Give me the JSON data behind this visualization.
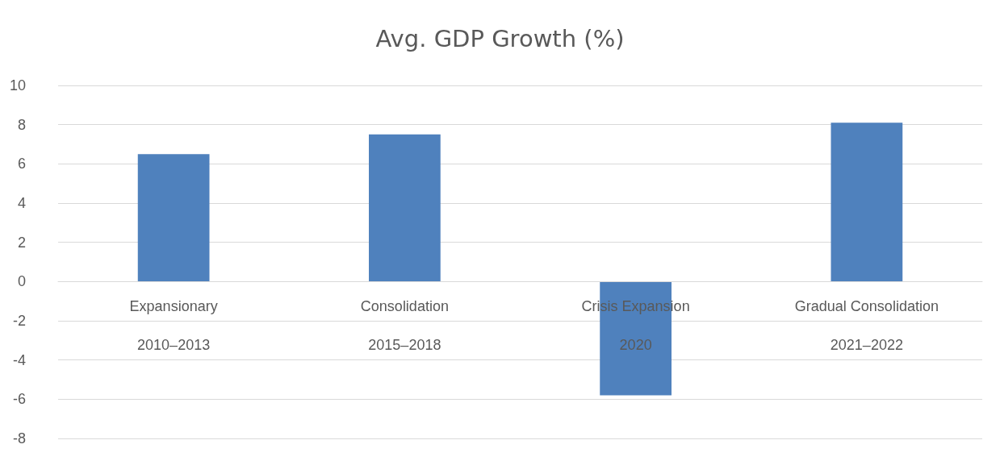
{
  "chart_data": {
    "type": "bar",
    "title": "Avg. GDP Growth (%)",
    "categories": [
      "Expansionary\n2010–2013",
      "Consolidation\n2015–2018",
      "Crisis Expansion\n2020",
      "Gradual Consolidation\n2021–2022"
    ],
    "values": [
      6.5,
      7.5,
      -5.8,
      8.1
    ],
    "color": "#4f81bd",
    "ylim": [
      -8,
      10
    ],
    "yticks": [
      -8,
      -6,
      -4,
      -2,
      0,
      2,
      4,
      6,
      8,
      10
    ],
    "grid": "y"
  }
}
